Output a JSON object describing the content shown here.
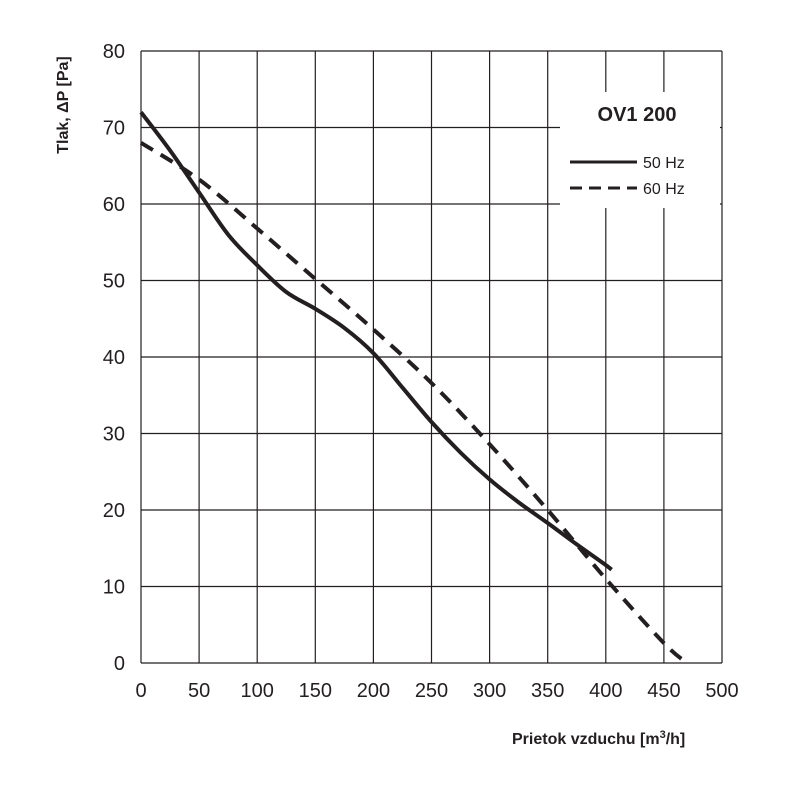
{
  "chart_data": {
    "type": "line",
    "title": "OV1 200",
    "xlabel": "Prietok vzduchu  [m",
    "xlabel_sup": "3",
    "xlabel_end": "/h]",
    "ylabel": "Tlak, ΔP [Pa]",
    "xlim": [
      0,
      500
    ],
    "ylim": [
      0,
      80
    ],
    "x_ticks": [
      "0",
      "50",
      "100",
      "150",
      "200",
      "250",
      "300",
      "350",
      "400",
      "450",
      "500"
    ],
    "y_ticks": [
      "0",
      "10",
      "20",
      "30",
      "40",
      "50",
      "60",
      "70",
      "80"
    ],
    "grid": true,
    "legend_position": "top-right",
    "series": [
      {
        "name": "50 Hz",
        "style": "solid",
        "x": [
          0,
          25,
          50,
          75,
          100,
          125,
          150,
          175,
          200,
          225,
          250,
          275,
          300,
          325,
          350,
          375,
          400,
          405
        ],
        "y": [
          72,
          67,
          61.5,
          56,
          52,
          48.5,
          46.3,
          43.8,
          40.5,
          36,
          31.5,
          27.5,
          24,
          21,
          18.3,
          15.5,
          12.8,
          12.2
        ]
      },
      {
        "name": "60 Hz",
        "style": "dashed",
        "x": [
          0,
          50,
          100,
          150,
          200,
          250,
          300,
          350,
          400,
          450,
          470
        ],
        "y": [
          68,
          63.2,
          56.8,
          50.2,
          43.6,
          36.6,
          28.6,
          20,
          11,
          2.6,
          0
        ]
      }
    ],
    "line_color": "#231f20"
  }
}
